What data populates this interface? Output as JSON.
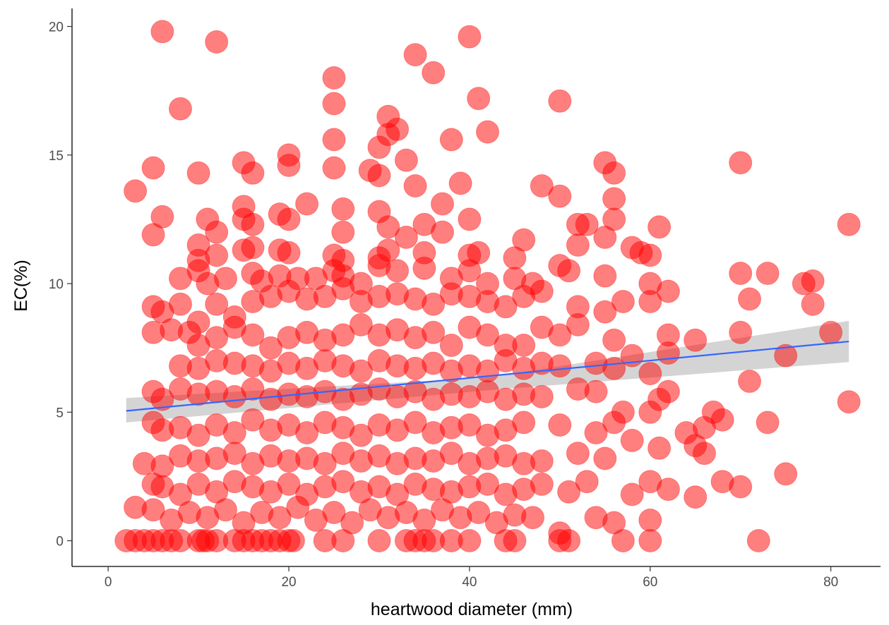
{
  "chart_data": {
    "type": "scatter",
    "title": "",
    "xlabel": "heartwood diameter (mm)",
    "ylabel": "EC(%)",
    "xlim": [
      -4,
      85.5
    ],
    "ylim": [
      -1,
      20.7
    ],
    "xticks": [
      0,
      20,
      40,
      60,
      80
    ],
    "yticks": [
      0,
      5,
      10,
      15,
      20
    ],
    "grid": false,
    "legend": "none",
    "point_color": "#FF0000",
    "point_opacity": 0.5,
    "trend_line": {
      "method": "linear",
      "color": "#3366FF",
      "ribbon_color": "#999999",
      "x": [
        2,
        82
      ],
      "y": [
        5.05,
        7.75
      ],
      "ci_lower": [
        4.6,
        6.95
      ],
      "ci_upper": [
        5.55,
        8.55
      ],
      "ci_at_mean": [
        5.85,
        6.35
      ]
    },
    "points": [
      [
        2,
        0
      ],
      [
        3,
        0
      ],
      [
        4,
        0
      ],
      [
        5,
        0
      ],
      [
        6,
        0
      ],
      [
        7,
        0
      ],
      [
        8,
        0
      ],
      [
        10,
        0
      ],
      [
        10.5,
        0
      ],
      [
        11,
        0
      ],
      [
        12,
        0
      ],
      [
        14,
        0
      ],
      [
        15,
        0
      ],
      [
        16,
        0
      ],
      [
        17,
        0
      ],
      [
        18,
        0
      ],
      [
        19,
        0
      ],
      [
        20,
        0
      ],
      [
        20.5,
        0
      ],
      [
        24,
        0
      ],
      [
        26,
        0
      ],
      [
        30,
        0
      ],
      [
        33,
        0
      ],
      [
        34,
        0
      ],
      [
        35,
        0
      ],
      [
        36,
        0
      ],
      [
        38,
        0
      ],
      [
        40,
        0
      ],
      [
        44,
        0
      ],
      [
        45,
        0
      ],
      [
        50,
        0
      ],
      [
        51,
        0
      ],
      [
        57,
        0
      ],
      [
        60,
        0
      ],
      [
        72,
        0
      ],
      [
        6,
        19.8
      ],
      [
        12,
        19.4
      ],
      [
        8,
        16.8
      ],
      [
        40,
        19.6
      ],
      [
        34,
        18.9
      ],
      [
        36,
        18.2
      ],
      [
        25,
        18
      ],
      [
        25,
        17
      ],
      [
        41,
        17.2
      ],
      [
        50,
        17.1
      ],
      [
        31,
        16.5
      ],
      [
        42,
        15.9
      ],
      [
        32,
        16
      ],
      [
        38,
        15.6
      ],
      [
        25,
        15.6
      ],
      [
        30,
        15.3
      ],
      [
        31,
        15.8
      ],
      [
        3,
        13.6
      ],
      [
        5,
        14.5
      ],
      [
        10,
        14.3
      ],
      [
        15,
        14.7
      ],
      [
        16,
        14.3
      ],
      [
        20,
        15
      ],
      [
        20,
        14.6
      ],
      [
        25,
        14.5
      ],
      [
        29,
        14.4
      ],
      [
        30,
        14.2
      ],
      [
        33,
        14.8
      ],
      [
        39,
        13.9
      ],
      [
        48,
        13.8
      ],
      [
        50,
        13.4
      ],
      [
        55,
        14.7
      ],
      [
        56,
        14.3
      ],
      [
        70,
        14.7
      ],
      [
        56,
        13.3
      ],
      [
        22,
        13.1
      ],
      [
        37,
        13.1
      ],
      [
        34,
        13.8
      ],
      [
        6,
        12.6
      ],
      [
        11,
        12.5
      ],
      [
        12,
        12
      ],
      [
        15,
        13
      ],
      [
        15,
        12.5
      ],
      [
        16,
        12.3
      ],
      [
        19,
        12.7
      ],
      [
        20,
        12.5
      ],
      [
        26,
        12.9
      ],
      [
        26,
        12
      ],
      [
        30,
        12.8
      ],
      [
        31,
        12.2
      ],
      [
        35,
        12.3
      ],
      [
        37,
        12
      ],
      [
        40,
        12.5
      ],
      [
        46,
        11.7
      ],
      [
        52,
        12.3
      ],
      [
        53,
        12.3
      ],
      [
        55,
        11.8
      ],
      [
        56,
        12.5
      ],
      [
        61,
        12.2
      ],
      [
        82,
        12.3
      ],
      [
        5,
        11.9
      ],
      [
        10,
        11.5
      ],
      [
        10,
        10.9
      ],
      [
        12,
        11.1
      ],
      [
        15,
        11.3
      ],
      [
        16,
        11.4
      ],
      [
        19,
        11.3
      ],
      [
        20,
        11.2
      ],
      [
        25,
        11.1
      ],
      [
        26,
        10.9
      ],
      [
        30,
        11
      ],
      [
        31,
        11.3
      ],
      [
        33,
        11.8
      ],
      [
        35,
        11.2
      ],
      [
        40,
        11.1
      ],
      [
        41,
        11.2
      ],
      [
        45,
        11
      ],
      [
        52,
        11.5
      ],
      [
        58,
        11.4
      ],
      [
        59,
        11.2
      ],
      [
        60,
        11.1
      ],
      [
        8,
        10.2
      ],
      [
        10,
        10.5
      ],
      [
        11,
        10
      ],
      [
        13,
        10.2
      ],
      [
        16,
        10.4
      ],
      [
        17,
        10.1
      ],
      [
        19,
        10.3
      ],
      [
        21,
        10.2
      ],
      [
        23,
        10.2
      ],
      [
        25,
        10.5
      ],
      [
        26,
        10.3
      ],
      [
        28,
        10
      ],
      [
        30,
        10.7
      ],
      [
        32,
        10.5
      ],
      [
        35,
        10.6
      ],
      [
        38,
        10.2
      ],
      [
        40,
        10.5
      ],
      [
        42,
        10
      ],
      [
        45,
        10.2
      ],
      [
        47,
        10
      ],
      [
        50,
        10.7
      ],
      [
        51,
        10.5
      ],
      [
        55,
        10.3
      ],
      [
        60,
        10
      ],
      [
        70,
        10.4
      ],
      [
        73,
        10.4
      ],
      [
        77,
        10
      ],
      [
        78,
        10.1
      ],
      [
        5,
        9.1
      ],
      [
        6,
        8.9
      ],
      [
        8,
        9.2
      ],
      [
        10,
        8.5
      ],
      [
        12,
        9.2
      ],
      [
        14,
        8.7
      ],
      [
        16,
        9.3
      ],
      [
        18,
        9.5
      ],
      [
        20,
        9.7
      ],
      [
        22,
        9.4
      ],
      [
        24,
        9.5
      ],
      [
        26,
        9.8
      ],
      [
        28,
        9.3
      ],
      [
        30,
        9.5
      ],
      [
        32,
        9.6
      ],
      [
        34,
        9.4
      ],
      [
        36,
        9.2
      ],
      [
        38,
        9.6
      ],
      [
        40,
        9.5
      ],
      [
        42,
        9.3
      ],
      [
        44,
        9.1
      ],
      [
        46,
        9.5
      ],
      [
        48,
        9.7
      ],
      [
        52,
        9.1
      ],
      [
        55,
        8.9
      ],
      [
        57,
        9.3
      ],
      [
        60,
        9.3
      ],
      [
        62,
        9.7
      ],
      [
        71,
        9.4
      ],
      [
        78,
        9.2
      ],
      [
        5,
        8.1
      ],
      [
        7,
        8.2
      ],
      [
        9,
        8.1
      ],
      [
        10,
        7.6
      ],
      [
        12,
        7.9
      ],
      [
        14,
        8.3
      ],
      [
        16,
        8
      ],
      [
        18,
        7.5
      ],
      [
        20,
        7.9
      ],
      [
        22,
        8.1
      ],
      [
        24,
        7.8
      ],
      [
        26,
        8
      ],
      [
        28,
        8.4
      ],
      [
        30,
        8
      ],
      [
        32,
        8.2
      ],
      [
        34,
        7.9
      ],
      [
        36,
        8.1
      ],
      [
        38,
        7.6
      ],
      [
        40,
        8.3
      ],
      [
        42,
        8
      ],
      [
        44,
        7.6
      ],
      [
        46,
        7.6
      ],
      [
        48,
        8.3
      ],
      [
        50,
        8
      ],
      [
        52,
        8.4
      ],
      [
        56,
        7.8
      ],
      [
        62,
        8
      ],
      [
        65,
        7.8
      ],
      [
        70,
        8.1
      ],
      [
        80,
        8.1
      ],
      [
        8,
        6.8
      ],
      [
        10,
        6.7
      ],
      [
        12,
        7
      ],
      [
        14,
        6.9
      ],
      [
        16,
        6.8
      ],
      [
        18,
        6.6
      ],
      [
        20,
        6.9
      ],
      [
        22,
        6.7
      ],
      [
        24,
        7
      ],
      [
        26,
        6.8
      ],
      [
        28,
        6.6
      ],
      [
        30,
        7
      ],
      [
        32,
        6.8
      ],
      [
        34,
        6.7
      ],
      [
        36,
        6.9
      ],
      [
        38,
        6.6
      ],
      [
        40,
        6.8
      ],
      [
        42,
        6.6
      ],
      [
        44,
        7
      ],
      [
        46,
        6.7
      ],
      [
        48,
        6.9
      ],
      [
        50,
        6.8
      ],
      [
        54,
        6.9
      ],
      [
        56,
        6.7
      ],
      [
        58,
        7.2
      ],
      [
        60,
        6.5
      ],
      [
        62,
        7.3
      ],
      [
        71,
        6.2
      ],
      [
        75,
        7.2
      ],
      [
        5,
        5.8
      ],
      [
        6,
        5.5
      ],
      [
        8,
        5.9
      ],
      [
        10,
        5.7
      ],
      [
        12,
        5.8
      ],
      [
        14,
        5.6
      ],
      [
        16,
        5.9
      ],
      [
        18,
        5.5
      ],
      [
        20,
        5.7
      ],
      [
        22,
        5.6
      ],
      [
        24,
        5.8
      ],
      [
        26,
        5.5
      ],
      [
        28,
        5.7
      ],
      [
        30,
        5.9
      ],
      [
        32,
        5.6
      ],
      [
        34,
        5.8
      ],
      [
        36,
        5.5
      ],
      [
        38,
        5.7
      ],
      [
        40,
        5.6
      ],
      [
        42,
        5.8
      ],
      [
        44,
        5.5
      ],
      [
        46,
        5.7
      ],
      [
        48,
        5.6
      ],
      [
        52,
        5.9
      ],
      [
        54,
        5.8
      ],
      [
        57,
        5
      ],
      [
        60,
        5
      ],
      [
        61,
        5.5
      ],
      [
        62,
        5.8
      ],
      [
        82,
        5.4
      ],
      [
        5,
        4.6
      ],
      [
        6,
        4.3
      ],
      [
        8,
        4.4
      ],
      [
        10,
        4.1
      ],
      [
        12,
        4.5
      ],
      [
        14,
        4.2
      ],
      [
        16,
        4.7
      ],
      [
        18,
        4.3
      ],
      [
        20,
        4.5
      ],
      [
        22,
        4.2
      ],
      [
        24,
        4.6
      ],
      [
        26,
        4.4
      ],
      [
        28,
        4.1
      ],
      [
        30,
        4.5
      ],
      [
        32,
        4.3
      ],
      [
        34,
        4.6
      ],
      [
        36,
        4.2
      ],
      [
        38,
        4.4
      ],
      [
        40,
        4.5
      ],
      [
        42,
        4.1
      ],
      [
        44,
        4.3
      ],
      [
        46,
        4.6
      ],
      [
        50,
        4.5
      ],
      [
        54,
        4.2
      ],
      [
        56,
        4.6
      ],
      [
        58,
        3.9
      ],
      [
        64,
        4.2
      ],
      [
        66,
        4.4
      ],
      [
        67,
        5
      ],
      [
        68,
        4.7
      ],
      [
        73,
        4.6
      ],
      [
        4,
        3
      ],
      [
        6,
        2.9
      ],
      [
        8,
        3.3
      ],
      [
        10,
        3.1
      ],
      [
        12,
        3.2
      ],
      [
        14,
        3.4
      ],
      [
        16,
        3
      ],
      [
        18,
        3.3
      ],
      [
        20,
        3.1
      ],
      [
        22,
        3.2
      ],
      [
        24,
        3
      ],
      [
        26,
        3.4
      ],
      [
        28,
        3.1
      ],
      [
        30,
        3.3
      ],
      [
        32,
        3
      ],
      [
        34,
        3.2
      ],
      [
        36,
        3.1
      ],
      [
        38,
        3.4
      ],
      [
        40,
        3
      ],
      [
        42,
        3.2
      ],
      [
        44,
        3.3
      ],
      [
        46,
        3
      ],
      [
        48,
        3.1
      ],
      [
        52,
        3.4
      ],
      [
        55,
        3.2
      ],
      [
        61,
        3.6
      ],
      [
        65,
        3.7
      ],
      [
        66,
        3.4
      ],
      [
        5,
        2.2
      ],
      [
        6,
        2.1
      ],
      [
        8,
        1.8
      ],
      [
        10,
        2.2
      ],
      [
        12,
        1.9
      ],
      [
        14,
        2.3
      ],
      [
        16,
        2.1
      ],
      [
        18,
        1.9
      ],
      [
        20,
        2.2
      ],
      [
        22,
        1.8
      ],
      [
        24,
        2.1
      ],
      [
        26,
        2.3
      ],
      [
        28,
        1.9
      ],
      [
        30,
        2.1
      ],
      [
        32,
        1.8
      ],
      [
        34,
        2.2
      ],
      [
        36,
        2
      ],
      [
        38,
        1.9
      ],
      [
        40,
        2.1
      ],
      [
        42,
        2.2
      ],
      [
        44,
        1.8
      ],
      [
        46,
        2
      ],
      [
        48,
        2.2
      ],
      [
        51,
        1.9
      ],
      [
        53,
        2.3
      ],
      [
        58,
        1.8
      ],
      [
        60,
        2.3
      ],
      [
        62,
        2
      ],
      [
        65,
        1.7
      ],
      [
        68,
        2.3
      ],
      [
        70,
        2.1
      ],
      [
        75,
        2.6
      ],
      [
        3,
        1.3
      ],
      [
        5,
        1.2
      ],
      [
        7,
        0.8
      ],
      [
        9,
        1.1
      ],
      [
        11,
        0.9
      ],
      [
        13,
        1.2
      ],
      [
        15,
        0.7
      ],
      [
        17,
        1.1
      ],
      [
        19,
        0.9
      ],
      [
        21,
        1.3
      ],
      [
        23,
        0.8
      ],
      [
        25,
        1.1
      ],
      [
        27,
        0.7
      ],
      [
        29,
        1.2
      ],
      [
        31,
        0.9
      ],
      [
        33,
        1.1
      ],
      [
        35,
        0.8
      ],
      [
        37,
        1.2
      ],
      [
        39,
        0.9
      ],
      [
        41,
        1.1
      ],
      [
        43,
        0.7
      ],
      [
        45,
        1
      ],
      [
        47,
        0.9
      ],
      [
        50,
        0.3
      ],
      [
        54,
        0.9
      ],
      [
        56,
        0.7
      ],
      [
        60,
        0.8
      ]
    ]
  }
}
